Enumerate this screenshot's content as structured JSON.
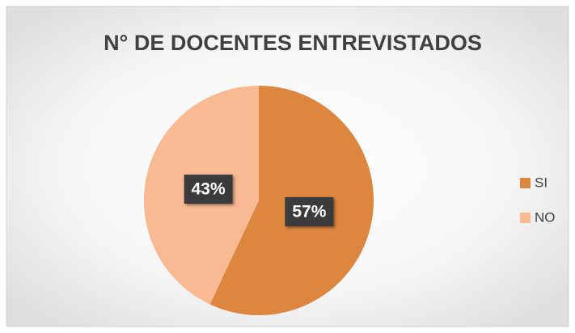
{
  "chart_data": {
    "type": "pie",
    "title": "N° DE DOCENTES ENTREVISTADOS",
    "categories": [
      "SI",
      "NO"
    ],
    "values": [
      57,
      43
    ],
    "value_labels": [
      "57%",
      "43%"
    ],
    "colors": [
      "#dd8640",
      "#f9b993"
    ],
    "legend": "right"
  }
}
